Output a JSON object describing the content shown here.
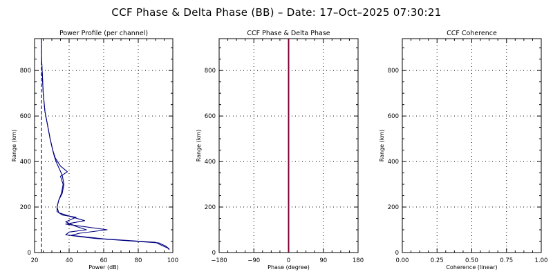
{
  "title": "CCF Phase & Delta Phase (BB) – Date: 17–Oct–2025 07:30:21",
  "chart_data": [
    {
      "type": "line",
      "title": "Power Profile (per channel)",
      "xlabel": "Power (dB)",
      "ylabel": "Range (km)",
      "xlim": [
        20,
        100
      ],
      "ylim": [
        0,
        940
      ],
      "xticks": [
        "20",
        "40",
        "60",
        "80",
        "100"
      ],
      "yticks": [
        "0",
        "200",
        "400",
        "600",
        "800"
      ],
      "grid": true,
      "series": [
        {
          "color": "#00007f",
          "points": [
            [
              24,
              940
            ],
            [
              24,
              860
            ],
            [
              24.5,
              780
            ],
            [
              25,
              700
            ],
            [
              26,
              620
            ],
            [
              27.5,
              560
            ],
            [
              29,
              500
            ],
            [
              30.5,
              450
            ],
            [
              31.5,
              420
            ],
            [
              33,
              390
            ],
            [
              34.5,
              365
            ],
            [
              36,
              340
            ],
            [
              37,
              300
            ],
            [
              36,
              260
            ],
            [
              34,
              230
            ],
            [
              33,
              200
            ],
            [
              33,
              180
            ],
            [
              36,
              165
            ],
            [
              44,
              155
            ],
            [
              38,
              135
            ],
            [
              44,
              115
            ],
            [
              50,
              100
            ],
            [
              40,
              90
            ],
            [
              38,
              78
            ],
            [
              60,
              60
            ],
            [
              90,
              45
            ],
            [
              94,
              30
            ],
            [
              97,
              20
            ],
            [
              98,
              12
            ]
          ]
        },
        {
          "color": "#00007f",
          "points": [
            [
              24,
              940
            ],
            [
              24,
              860
            ],
            [
              24.5,
              780
            ],
            [
              25,
              700
            ],
            [
              26,
              620
            ],
            [
              27.5,
              560
            ],
            [
              29,
              500
            ],
            [
              30.5,
              450
            ],
            [
              32,
              415
            ],
            [
              35,
              380
            ],
            [
              39,
              355
            ],
            [
              35,
              335
            ],
            [
              36.5,
              300
            ],
            [
              35.5,
              260
            ],
            [
              34,
              230
            ],
            [
              33,
              200
            ],
            [
              34,
              175
            ],
            [
              40,
              160
            ],
            [
              49,
              140
            ],
            [
              38,
              125
            ],
            [
              62,
              100
            ],
            [
              46,
              85
            ],
            [
              41,
              75
            ],
            [
              55,
              62
            ],
            [
              92,
              42
            ],
            [
              96,
              28
            ],
            [
              98,
              15
            ]
          ]
        },
        {
          "color": "#00007f",
          "dashed": true,
          "points": [
            [
              24,
              0
            ],
            [
              24,
              940
            ]
          ]
        }
      ]
    },
    {
      "type": "line",
      "title": "CCF Phase & Delta Phase",
      "xlabel": "Phase (degree)",
      "ylabel": "Range (km)",
      "xlim": [
        -180,
        180
      ],
      "ylim": [
        0,
        940
      ],
      "xticks": [
        "−180",
        "−90",
        "0",
        "90",
        "180"
      ],
      "yticks": [
        "0",
        "200",
        "400",
        "600",
        "800"
      ],
      "grid": true,
      "series": [
        {
          "color": "#7f0033",
          "points": [
            [
              0,
              0
            ],
            [
              0,
              940
            ]
          ]
        }
      ]
    },
    {
      "type": "line",
      "title": "CCF Coherence",
      "xlabel": "Coherence (linear)",
      "ylabel": "Range (km)",
      "xlim": [
        0,
        1
      ],
      "ylim": [
        0,
        940
      ],
      "xticks": [
        "0.00",
        "0.25",
        "0.50",
        "0.75",
        "1.00"
      ],
      "yticks": [
        "0",
        "200",
        "400",
        "600",
        "800"
      ],
      "grid": true,
      "series": []
    }
  ]
}
